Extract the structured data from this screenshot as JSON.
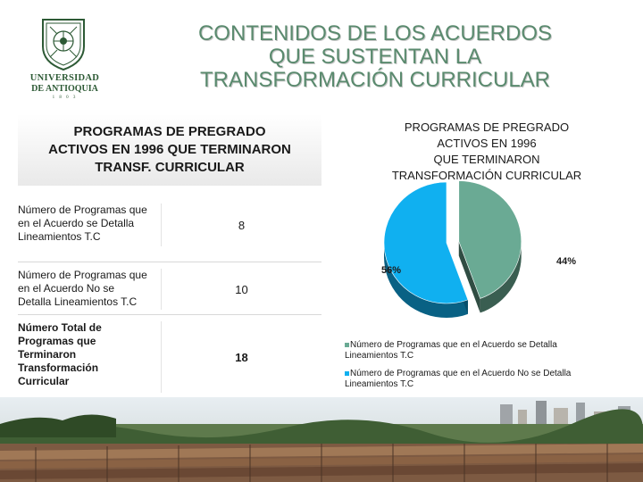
{
  "logo": {
    "line1": "UNIVERSIDAD",
    "line2": "DE ANTIOQUIA",
    "year": "1 8 0 3"
  },
  "title": "CONTENIDOS DE LOS ACUERDOS\nQUE SUSTENTAN LA\nTRANSFORMACIÓN CURRICULAR",
  "table": {
    "header": "PROGRAMAS DE PREGRADO\nACTIVOS EN 1996 QUE TERMINARON\nTRANSF. CURRICULAR",
    "rows": [
      {
        "label": "Número de Programas que\nen el Acuerdo se Detalla\nLineamientos T.C",
        "value": "8"
      },
      {
        "label": "Número de Programas que\nen el Acuerdo No se\nDetalla Lineamientos T.C",
        "value": "10"
      },
      {
        "label": "Número Total de\nProgramas que\nTerminaron\nTransformación\nCurricular",
        "value": "18"
      }
    ]
  },
  "chart_data": {
    "type": "pie",
    "title": "PROGRAMAS DE PREGRADO\nACTIVOS EN 1996\nQUE TERMINARON\nTRANSFORMACIÓN CURRICULAR",
    "slices": [
      {
        "label": "Número de Programas que en el Acuerdo se Detalla\nLineamientos T.C",
        "value": 8,
        "percent_label": "44%",
        "color": "#6aaa94"
      },
      {
        "label": "Número de Programas que en el Acuerdo No se Detalla\nLineamientos T.C",
        "value": 10,
        "percent_label": "56%",
        "color": "#10b0f0"
      }
    ],
    "legend_position": "bottom",
    "style": "3d-exploded"
  },
  "colors": {
    "title": "#5a8a6e",
    "logo": "#2d5a35",
    "slice_green": "#6aaa94",
    "slice_blue": "#10b0f0"
  }
}
